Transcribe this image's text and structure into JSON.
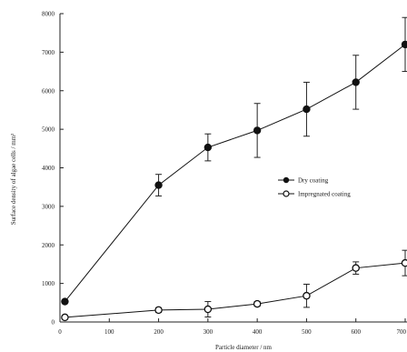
{
  "chart_data": {
    "type": "line",
    "xlabel": "Particle diameter / nm",
    "ylabel": "Surface density of algae cells / mm²",
    "xlim": [
      0,
      700
    ],
    "ylim": [
      0,
      8000
    ],
    "x_ticks": [
      "0",
      "100",
      "200",
      "300",
      "400",
      "500",
      "600",
      "700"
    ],
    "y_ticks": [
      "0",
      "1000",
      "2000",
      "3000",
      "4000",
      "5000",
      "6000",
      "7000",
      "8000"
    ],
    "grid": false,
    "legend_position": "center-right",
    "series": [
      {
        "name": "Dry coating",
        "marker": "filled-circle",
        "color": "#111111",
        "x": [
          10,
          200,
          300,
          400,
          500,
          600,
          700
        ],
        "y": [
          530,
          3550,
          4530,
          4970,
          5520,
          6220,
          7200
        ],
        "yerr": [
          0,
          280,
          350,
          700,
          700,
          700,
          700
        ]
      },
      {
        "name": "Impregnated coating",
        "marker": "open-circle",
        "color": "#111111",
        "x": [
          10,
          200,
          300,
          400,
          500,
          600,
          700
        ],
        "y": [
          120,
          310,
          330,
          470,
          680,
          1400,
          1530
        ],
        "yerr": [
          0,
          60,
          200,
          60,
          300,
          160,
          330
        ]
      }
    ]
  }
}
